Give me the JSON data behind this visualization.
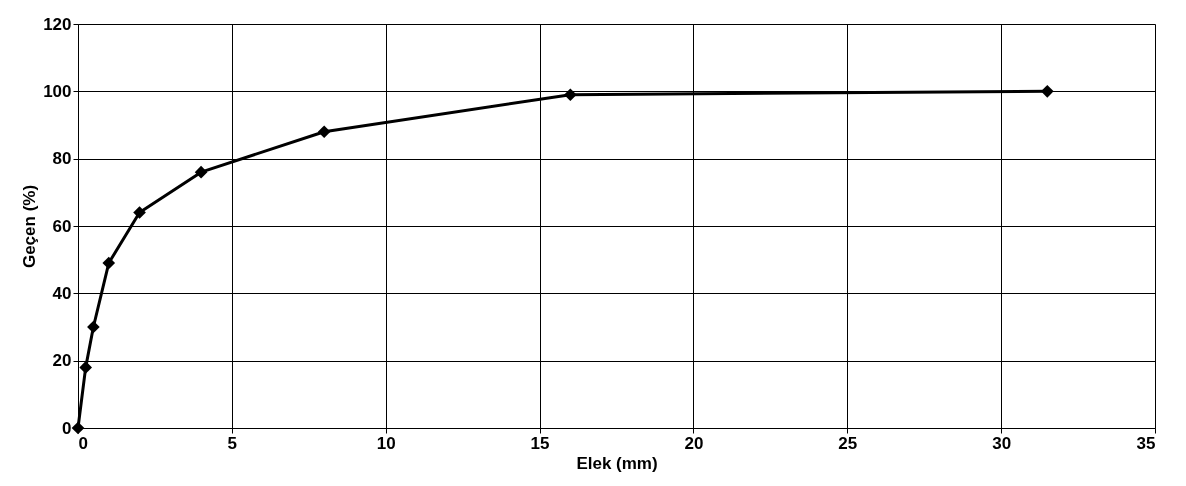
{
  "chart_data": {
    "type": "line",
    "xlabel": "Elek (mm)",
    "ylabel": "Geçen (%)",
    "x": [
      0,
      0.25,
      0.5,
      1,
      2,
      4,
      8,
      16,
      31.5
    ],
    "series": [
      {
        "color": "#000000",
        "values": [
          0,
          18,
          30,
          49,
          64,
          76,
          88,
          99,
          100
        ]
      }
    ],
    "xlim": [
      0,
      35
    ],
    "xticks": [
      0,
      5,
      10,
      15,
      20,
      25,
      30,
      35
    ],
    "ylim": [
      0,
      120
    ],
    "yticks": [
      0,
      20,
      40,
      60,
      80,
      100,
      120
    ],
    "grid": true,
    "marker": "diamond",
    "line_style": "solid"
  }
}
